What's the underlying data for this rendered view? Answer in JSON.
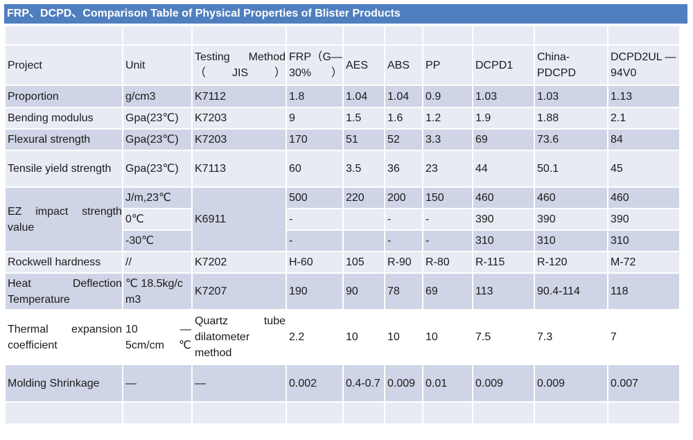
{
  "title": "FRP、DCPD、Comparison Table of Physical Properties of Blister Products",
  "header": {
    "project": "Project",
    "unit": "Unit",
    "method": "Testing Method（JIS）",
    "frp": "FRP（G—30%）",
    "aes": "AES",
    "abs": "ABS",
    "pp": "PP",
    "dcpd1": "DCPD1",
    "china": "China-PDCPD",
    "dcpd2": "DCPD2UL —94V0"
  },
  "rows": {
    "proportion": {
      "project": "Proportion",
      "unit": "g/cm3",
      "method": "K7112",
      "frp": "1.8",
      "aes": "1.04",
      "abs": "1.04",
      "pp": "0.9",
      "dcpd1": "1.03",
      "china": "1.03",
      "dcpd2": "1.13"
    },
    "bending": {
      "project": "Bending modulus",
      "unit": "Gpa(23℃)",
      "method": "K7203",
      "frp": "9",
      "aes": "1.5",
      "abs": "1.6",
      "pp": "1.2",
      "dcpd1": "1.9",
      "china": "1.88",
      "dcpd2": "2.1"
    },
    "flexural": {
      "project": "Flexural strength",
      "unit": "Gpa(23℃)",
      "method": "K7203",
      "frp": "170",
      "aes": "51",
      "abs": "52",
      "pp": "3.3",
      "dcpd1": "69",
      "china": "73.6",
      "dcpd2": "84"
    },
    "tensile": {
      "project": "Tensile yield strength",
      "unit": "Gpa(23℃)",
      "method": "K7113",
      "frp": "60",
      "aes": "3.5",
      "abs": "36",
      "pp": "23",
      "dcpd1": "44",
      "china": "50.1",
      "dcpd2": "45"
    },
    "ez": {
      "project": "EZ impact strength value",
      "method": "K6911",
      "sub": [
        {
          "unit": "J/m,23℃",
          "frp": "500",
          "aes": "220",
          "abs": "200",
          "pp": "150",
          "dcpd1": "460",
          "china": "460",
          "dcpd2": "460"
        },
        {
          "unit": "0℃",
          "frp": "-",
          "aes": "",
          "abs": "-",
          "pp": "-",
          "dcpd1": "390",
          "china": "390",
          "dcpd2": "390"
        },
        {
          "unit": "-30℃",
          "frp": "-",
          "aes": "",
          "abs": "-",
          "pp": "-",
          "dcpd1": "310",
          "china": "310",
          "dcpd2": "310"
        }
      ]
    },
    "rockwell": {
      "project": "Rockwell hardness",
      "unit": "//",
      "method": "K7202",
      "frp": "H-60",
      "aes": "105",
      "abs": "R-90",
      "pp": "R-80",
      "dcpd1": "R-115",
      "china": "R-120",
      "dcpd2": "M-72"
    },
    "heat": {
      "project": "Heat Deflection Temperature",
      "unit": "℃ 18.5kg/cm3",
      "method": "K7207",
      "frp": "190",
      "aes": "90",
      "abs": "78",
      "pp": "69",
      "dcpd1": "113",
      "china": "90.4-114",
      "dcpd2": "118"
    },
    "thermal": {
      "project": "Thermal expansion coefficient",
      "unit": "10 —5cm/cm℃",
      "method": "Quartz tube dilatometer method",
      "frp": "2.2",
      "aes": "10",
      "abs": "10",
      "pp": "10",
      "dcpd1": "7.5",
      "china": "7.3",
      "dcpd2": "7"
    },
    "molding": {
      "project": "Molding Shrinkage",
      "unit": "—",
      "method": "—",
      "frp": "0.002",
      "aes": "0.4-0.7",
      "abs": "0.009",
      "pp": "0.01",
      "dcpd1": "0.009",
      "china": "0.009",
      "dcpd2": "0.007"
    }
  }
}
